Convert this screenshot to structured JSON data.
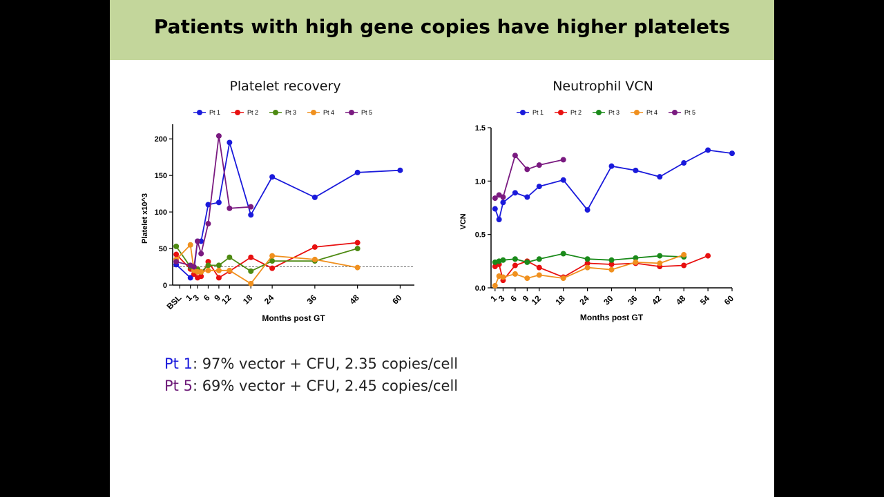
{
  "slide": {
    "title": "Patients with high gene copies have higher platelets",
    "notes": [
      {
        "label": "Pt 1",
        "text": ": 97% vector + CFU, 2.35 copies/cell",
        "color": "#1a1adb"
      },
      {
        "label": "Pt 5",
        "text": ": 69% vector + CFU, 2.45 copies/cell",
        "color": "#6d1a78"
      }
    ]
  },
  "chart_data": [
    {
      "type": "line",
      "title": "Platelet recovery",
      "xlabel": "Months post GT",
      "ylabel": "Platelet x10^3",
      "xlim": [
        -4,
        64
      ],
      "ylim": [
        0,
        220
      ],
      "x_ticks": [
        {
          "label": "BSL",
          "value": -2
        },
        {
          "label": "1",
          "value": 1
        },
        {
          "label": "3",
          "value": 3
        },
        {
          "label": "6",
          "value": 6
        },
        {
          "label": "9",
          "value": 9
        },
        {
          "label": "12",
          "value": 12
        },
        {
          "label": "18",
          "value": 18
        },
        {
          "label": "24",
          "value": 24
        },
        {
          "label": "36",
          "value": 36
        },
        {
          "label": "48",
          "value": 48
        },
        {
          "label": "60",
          "value": 60
        }
      ],
      "y_ticks": [
        0,
        50,
        100,
        150,
        200
      ],
      "reference_line": 25,
      "legend_position": "top",
      "series": [
        {
          "name": "Pt 1",
          "color": "#1a1adb",
          "points": [
            [
              -3,
              28
            ],
            [
              1,
              10
            ],
            [
              2,
              20
            ],
            [
              3,
              60
            ],
            [
              4,
              60
            ],
            [
              6,
              110
            ],
            [
              9,
              113
            ],
            [
              12,
              195
            ],
            [
              18,
              96
            ],
            [
              24,
              148
            ],
            [
              36,
              120
            ],
            [
              48,
              154
            ],
            [
              60,
              157
            ]
          ]
        },
        {
          "name": "Pt 2",
          "color": "#e81010",
          "points": [
            [
              -3,
              42
            ],
            [
              1,
              22
            ],
            [
              2,
              15
            ],
            [
              3,
              10
            ],
            [
              4,
              12
            ],
            [
              6,
              32
            ],
            [
              9,
              10
            ],
            [
              12,
              19
            ],
            [
              18,
              38
            ],
            [
              24,
              23
            ],
            [
              36,
              52
            ],
            [
              48,
              58
            ]
          ]
        },
        {
          "name": "Pt 3",
          "color": "#4d8a12",
          "points": [
            [
              -3,
              53
            ],
            [
              1,
              25
            ],
            [
              2,
              22
            ],
            [
              3,
              22
            ],
            [
              4,
              18
            ],
            [
              6,
              27
            ],
            [
              9,
              27
            ],
            [
              12,
              38
            ],
            [
              18,
              19
            ],
            [
              24,
              33
            ],
            [
              36,
              33
            ],
            [
              48,
              50
            ]
          ]
        },
        {
          "name": "Pt 4",
          "color": "#f0901e",
          "points": [
            [
              -3,
              35
            ],
            [
              1,
              55
            ],
            [
              2,
              20
            ],
            [
              3,
              18
            ],
            [
              4,
              18
            ],
            [
              6,
              20
            ],
            [
              9,
              20
            ],
            [
              12,
              20
            ],
            [
              18,
              2
            ],
            [
              24,
              40
            ],
            [
              36,
              35
            ],
            [
              48,
              24
            ]
          ]
        },
        {
          "name": "Pt 5",
          "color": "#7a1a80",
          "points": [
            [
              -3,
              32
            ],
            [
              1,
              27
            ],
            [
              2,
              25
            ],
            [
              3,
              60
            ],
            [
              4,
              43
            ],
            [
              6,
              84
            ],
            [
              9,
              204
            ],
            [
              12,
              105
            ],
            [
              18,
              107
            ]
          ]
        }
      ]
    },
    {
      "type": "line",
      "title": "Neutrophil VCN",
      "xlabel": "Months post GT",
      "ylabel": "VCN",
      "xlim": [
        0,
        60
      ],
      "ylim": [
        0,
        1.5
      ],
      "x_ticks": [
        {
          "label": "1",
          "value": 1
        },
        {
          "label": "3",
          "value": 3
        },
        {
          "label": "6",
          "value": 6
        },
        {
          "label": "9",
          "value": 9
        },
        {
          "label": "12",
          "value": 12
        },
        {
          "label": "18",
          "value": 18
        },
        {
          "label": "24",
          "value": 24
        },
        {
          "label": "30",
          "value": 30
        },
        {
          "label": "36",
          "value": 36
        },
        {
          "label": "42",
          "value": 42
        },
        {
          "label": "48",
          "value": 48
        },
        {
          "label": "54",
          "value": 54
        },
        {
          "label": "60",
          "value": 60
        }
      ],
      "y_ticks": [
        0.0,
        0.5,
        1.0,
        1.5
      ],
      "y_tick_labels": [
        "0.0",
        "0.5",
        "1.0",
        "1.5"
      ],
      "legend_position": "top",
      "series": [
        {
          "name": "Pt 1",
          "color": "#1a1adb",
          "points": [
            [
              1,
              0.74
            ],
            [
              2,
              0.64
            ],
            [
              3,
              0.8
            ],
            [
              6,
              0.89
            ],
            [
              9,
              0.85
            ],
            [
              12,
              0.95
            ],
            [
              18,
              1.01
            ],
            [
              24,
              0.73
            ],
            [
              30,
              1.14
            ],
            [
              36,
              1.1
            ],
            [
              42,
              1.04
            ],
            [
              48,
              1.17
            ],
            [
              54,
              1.29
            ],
            [
              60,
              1.26
            ]
          ]
        },
        {
          "name": "Pt 2",
          "color": "#e81010",
          "points": [
            [
              1,
              0.2
            ],
            [
              2,
              0.22
            ],
            [
              3,
              0.07
            ],
            [
              6,
              0.21
            ],
            [
              9,
              0.25
            ],
            [
              12,
              0.19
            ],
            [
              18,
              0.1
            ],
            [
              24,
              0.23
            ],
            [
              30,
              0.22
            ],
            [
              36,
              0.23
            ],
            [
              42,
              0.2
            ],
            [
              48,
              0.21
            ],
            [
              54,
              0.3
            ]
          ]
        },
        {
          "name": "Pt 3",
          "color": "#1a8a1a",
          "points": [
            [
              1,
              0.24
            ],
            [
              2,
              0.25
            ],
            [
              3,
              0.26
            ],
            [
              6,
              0.27
            ],
            [
              9,
              0.24
            ],
            [
              12,
              0.27
            ],
            [
              18,
              0.32
            ],
            [
              24,
              0.27
            ],
            [
              30,
              0.26
            ],
            [
              36,
              0.28
            ],
            [
              42,
              0.3
            ],
            [
              48,
              0.29
            ]
          ]
        },
        {
          "name": "Pt 4",
          "color": "#f0901e",
          "points": [
            [
              1,
              0.02
            ],
            [
              2,
              0.11
            ],
            [
              3,
              0.1
            ],
            [
              6,
              0.13
            ],
            [
              9,
              0.09
            ],
            [
              12,
              0.12
            ],
            [
              18,
              0.09
            ],
            [
              24,
              0.19
            ],
            [
              30,
              0.17
            ],
            [
              36,
              0.24
            ],
            [
              42,
              0.23
            ],
            [
              48,
              0.31
            ]
          ]
        },
        {
          "name": "Pt 5",
          "color": "#7a1a80",
          "points": [
            [
              1,
              0.84
            ],
            [
              2,
              0.87
            ],
            [
              3,
              0.85
            ],
            [
              6,
              1.24
            ],
            [
              9,
              1.11
            ],
            [
              12,
              1.15
            ],
            [
              18,
              1.2
            ]
          ]
        }
      ]
    }
  ]
}
